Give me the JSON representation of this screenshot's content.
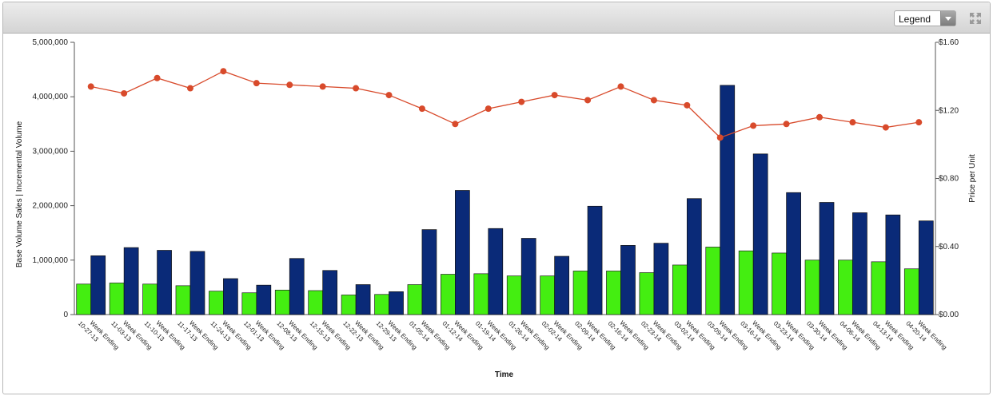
{
  "toolbar": {
    "legend_label": "Legend",
    "icons": [
      "dropdown-arrow-icon",
      "expand-icon"
    ]
  },
  "chart_data": {
    "type": "bar",
    "xlabel": "Time",
    "ylabel": "Base Volume Sales | Incremental Volume",
    "y2label": "Price per Unit",
    "ylim": [
      0,
      5000000
    ],
    "y2lim": [
      0,
      1.6
    ],
    "yticks": [
      "0",
      "1,000,000",
      "2,000,000",
      "3,000,000",
      "4,000,000",
      "5,000,000"
    ],
    "y2ticks": [
      "$0.00",
      "$0.40",
      "$0.80",
      "$1.20",
      "$1.60"
    ],
    "grid": false,
    "categories": [
      [
        "Week Ending",
        "10-27-13"
      ],
      [
        "Week Ending",
        "11-03-13"
      ],
      [
        "Week Ending",
        "11-10-13"
      ],
      [
        "Week Ending",
        "11-17-13"
      ],
      [
        "Week Ending",
        "11-24-13"
      ],
      [
        "Week Ending",
        "12-01-13"
      ],
      [
        "Week Ending",
        "12-08-13"
      ],
      [
        "Week Ending",
        "12-15-13"
      ],
      [
        "Week Ending",
        "12-22-13"
      ],
      [
        "Week Ending",
        "12-29-13"
      ],
      [
        "Week Ending",
        "01-05-14"
      ],
      [
        "Week Ending",
        "01-12-14"
      ],
      [
        "Week Ending",
        "01-19-14"
      ],
      [
        "Week Ending",
        "01-26-14"
      ],
      [
        "Week Ending",
        "02-02-14"
      ],
      [
        "Week Ending",
        "02-09-14"
      ],
      [
        "Week Ending",
        "02-16-14"
      ],
      [
        "Week Ending",
        "02-23-14"
      ],
      [
        "Week Ending",
        "03-02-14"
      ],
      [
        "Week Ending",
        "03-09-14"
      ],
      [
        "Week Ending",
        "03-16-14"
      ],
      [
        "Week Ending",
        "03-23-14"
      ],
      [
        "Week Ending",
        "03-30-14"
      ],
      [
        "Week Ending",
        "04-06-14"
      ],
      [
        "Week Ending",
        "04-13-14"
      ],
      [
        "Week Ending",
        "04-20-14"
      ]
    ],
    "series": [
      {
        "type": "bar",
        "color": "#44ee11",
        "axis": "left",
        "values": [
          560000,
          580000,
          560000,
          530000,
          430000,
          400000,
          450000,
          440000,
          360000,
          370000,
          550000,
          740000,
          750000,
          710000,
          710000,
          800000,
          800000,
          770000,
          910000,
          1240000,
          1170000,
          1130000,
          1000000,
          1000000,
          970000,
          840000
        ]
      },
      {
        "type": "bar",
        "color": "#0a2a78",
        "axis": "left",
        "values": [
          1080000,
          1230000,
          1180000,
          1160000,
          660000,
          540000,
          1030000,
          810000,
          550000,
          420000,
          1560000,
          2280000,
          1580000,
          1400000,
          1070000,
          1990000,
          1270000,
          1310000,
          2130000,
          4210000,
          2950000,
          2240000,
          2060000,
          1870000,
          1830000,
          1720000
        ]
      },
      {
        "type": "line",
        "color": "#d84a2b",
        "axis": "right",
        "values": [
          1.34,
          1.3,
          1.39,
          1.33,
          1.43,
          1.36,
          1.35,
          1.34,
          1.33,
          1.29,
          1.21,
          1.12,
          1.21,
          1.25,
          1.29,
          1.26,
          1.34,
          1.26,
          1.23,
          1.04,
          1.11,
          1.12,
          1.16,
          1.13,
          1.1,
          1.13
        ]
      }
    ]
  }
}
